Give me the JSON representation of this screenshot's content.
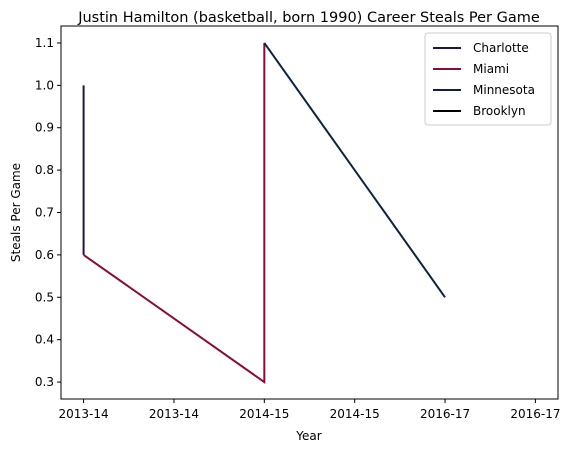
{
  "chart_data": {
    "type": "line",
    "title": "Justin Hamilton (basketball, born 1990) Career Steals Per Game",
    "xlabel": "Year",
    "ylabel": "Steals Per Game",
    "x_tick_labels": [
      "2013-14",
      "2013-14",
      "2014-15",
      "2014-15",
      "2016-17",
      "2016-17"
    ],
    "y_ticks": [
      0.3,
      0.4,
      0.5,
      0.6,
      0.7,
      0.8,
      0.9,
      1.0,
      1.1
    ],
    "xlim": [
      -0.25,
      5.25
    ],
    "ylim": [
      0.26,
      1.14
    ],
    "grid": false,
    "legend_position": "top-right",
    "series": [
      {
        "name": "Charlotte",
        "color": "#23144b",
        "points": [
          [
            0,
            1.0
          ],
          [
            0,
            0.6
          ]
        ]
      },
      {
        "name": "Miami",
        "color": "#8c0a38",
        "points": [
          [
            0,
            0.6
          ],
          [
            2,
            0.3
          ],
          [
            2,
            1.1
          ]
        ]
      },
      {
        "name": "Minnesota",
        "color": "#0e2240",
        "points": [
          [
            2,
            1.1
          ],
          [
            4,
            0.5
          ]
        ]
      },
      {
        "name": "Brooklyn",
        "color": "#000000",
        "points": [
          [
            4,
            0.5
          ]
        ]
      }
    ]
  }
}
